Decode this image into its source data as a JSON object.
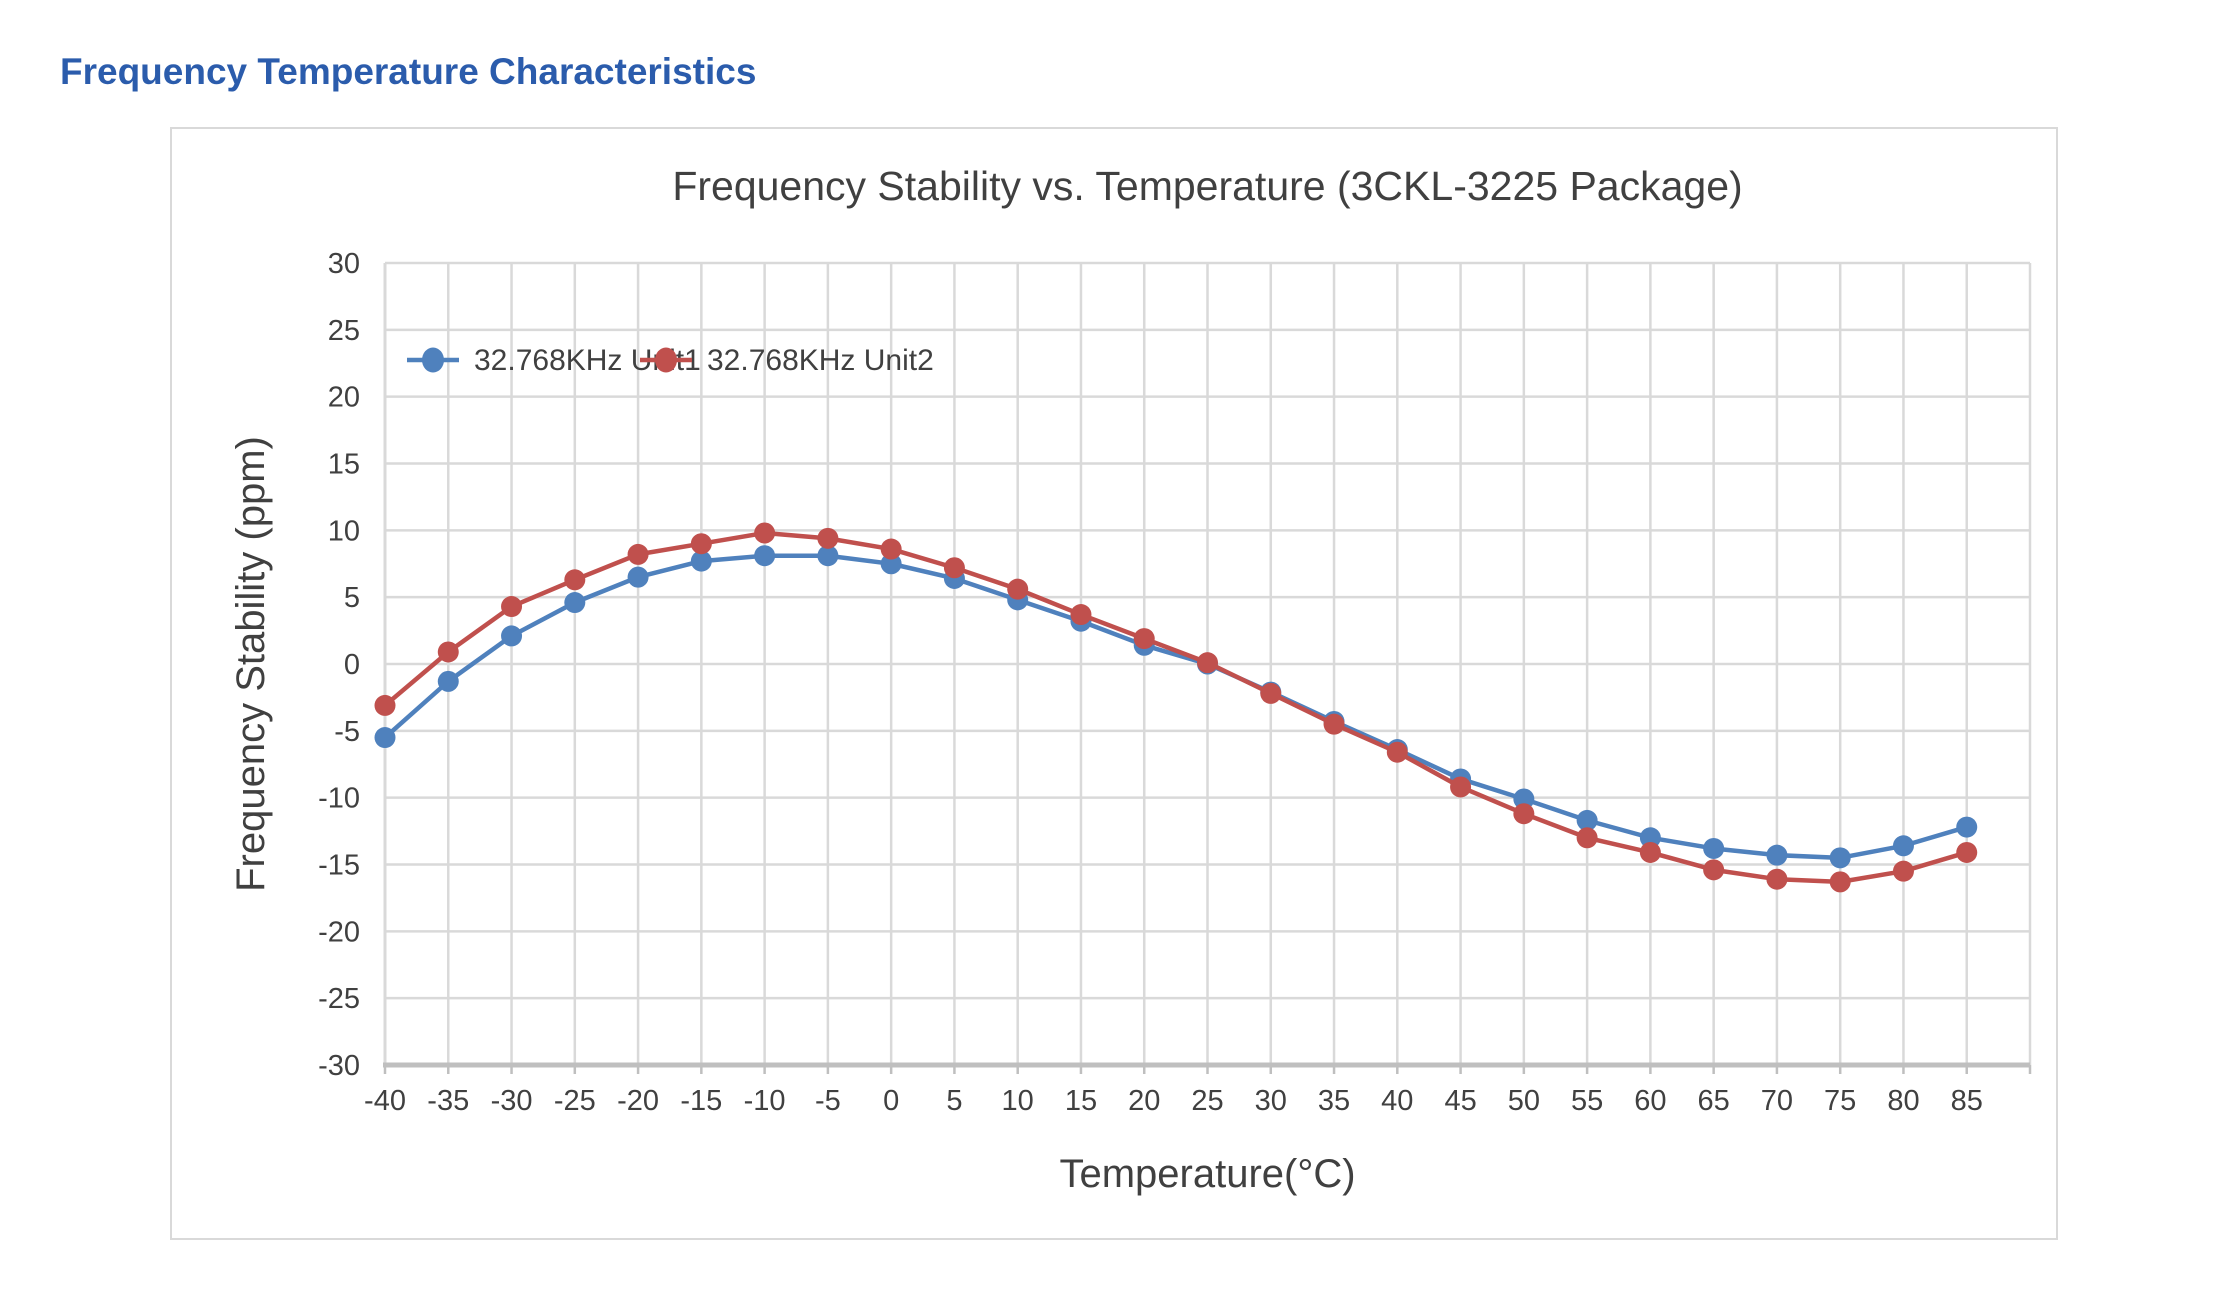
{
  "page": {
    "heading": "Frequency Temperature Characteristics"
  },
  "colors": {
    "heading": "#2B5CAC",
    "series1": "#4F81BD",
    "series2": "#C0504D",
    "grid": "#D9D9D9",
    "axis": "#BFBFBF",
    "text": "#404040",
    "chart_border": "#D9D9D9"
  },
  "chart_data": {
    "type": "line",
    "title": "Frequency Stability vs. Temperature (3CKL-3225 Package)",
    "xlabel": "Temperature(°C)",
    "ylabel": "Frequency Stability (ppm)",
    "xlim": [
      -40,
      90
    ],
    "ylim": [
      -30,
      30
    ],
    "grid": true,
    "legend_position": "top-left-inside",
    "x_ticks": [
      -40,
      -35,
      -30,
      -25,
      -20,
      -15,
      -10,
      -5,
      0,
      5,
      10,
      15,
      20,
      25,
      30,
      35,
      40,
      45,
      50,
      55,
      60,
      65,
      70,
      75,
      80,
      85
    ],
    "y_ticks": [
      30,
      25,
      20,
      15,
      10,
      5,
      0,
      -5,
      -10,
      -15,
      -20,
      -25,
      -30
    ],
    "x": [
      -40,
      -35,
      -30,
      -25,
      -20,
      -15,
      -10,
      -5,
      0,
      5,
      10,
      15,
      20,
      25,
      30,
      35,
      40,
      45,
      50,
      55,
      60,
      65,
      70,
      75,
      80,
      85
    ],
    "series": [
      {
        "name": "32.768KHz Unit1",
        "color": "#4F81BD",
        "values": [
          -5.5,
          -1.3,
          2.1,
          4.6,
          6.5,
          7.7,
          8.1,
          8.1,
          7.5,
          6.4,
          4.8,
          3.2,
          1.4,
          0.0,
          -2.1,
          -4.3,
          -6.4,
          -8.6,
          -10.1,
          -11.7,
          -13.0,
          -13.8,
          -14.3,
          -14.5,
          -13.6,
          -12.2
        ]
      },
      {
        "name": "32.768KHz Unit2",
        "color": "#C0504D",
        "values": [
          -3.1,
          0.9,
          4.3,
          6.3,
          8.2,
          9.0,
          9.8,
          9.4,
          8.6,
          7.2,
          5.6,
          3.7,
          1.9,
          0.1,
          -2.2,
          -4.5,
          -6.6,
          -9.2,
          -11.2,
          -13.0,
          -14.1,
          -15.4,
          -16.1,
          -16.3,
          -15.5,
          -14.1
        ]
      }
    ]
  }
}
